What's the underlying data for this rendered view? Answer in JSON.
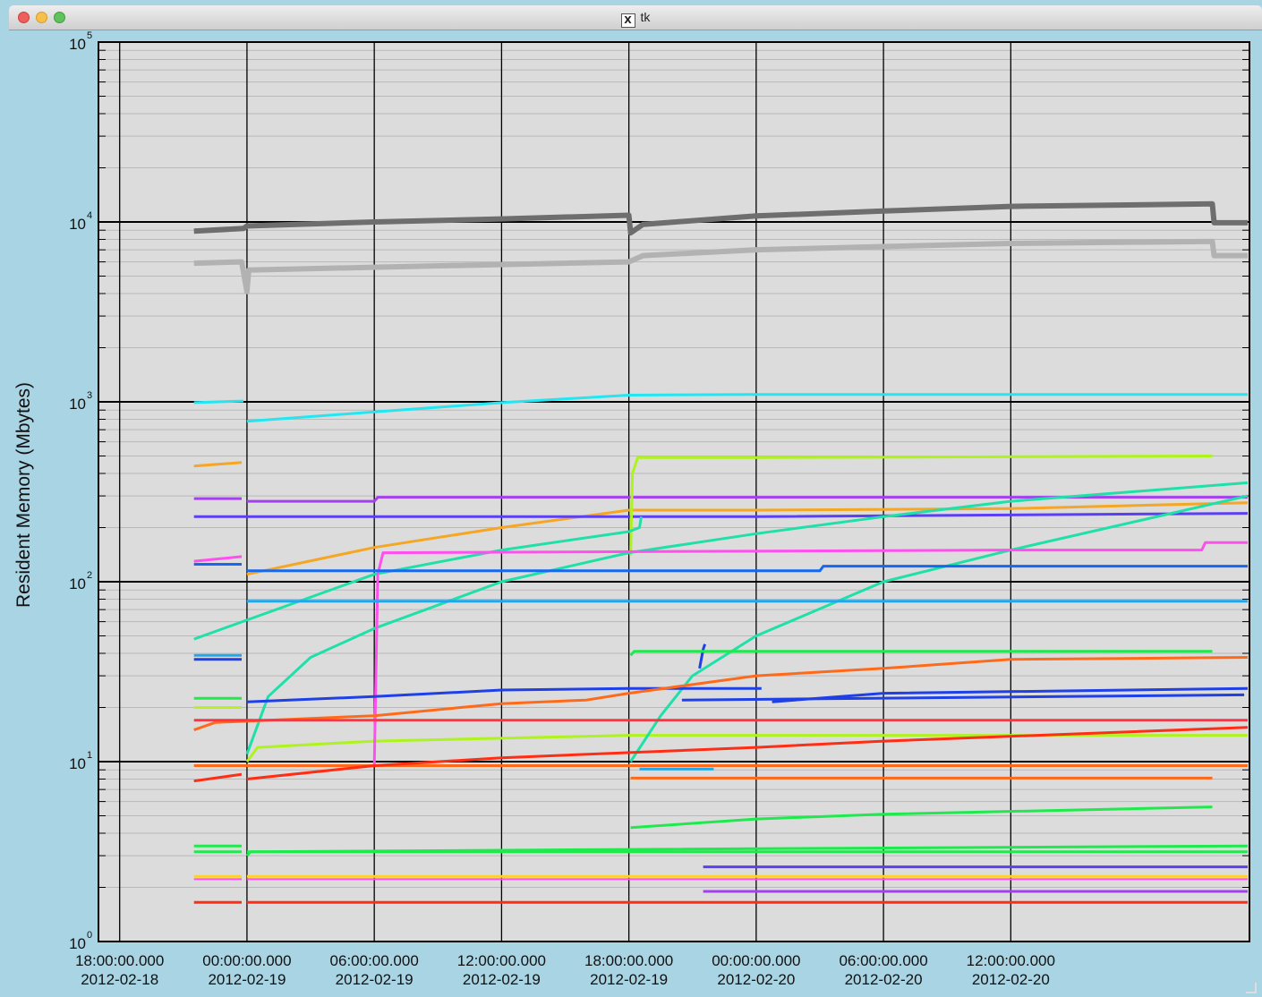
{
  "window": {
    "title": "tk"
  },
  "chart_data": {
    "type": "line",
    "ylabel": "Resident Memory (Mbytes)",
    "xlabel": "",
    "title": "",
    "yscale": "log",
    "ylim": [
      1,
      100000
    ],
    "xlim": [
      "2012-02-18 17:00",
      "2012-02-20 23:15"
    ],
    "grid": true,
    "legend": "none",
    "colors": {
      "plot_bg": "#dcdcdc",
      "frame_bg": "#a9d4e4"
    },
    "y_ticks": [
      {
        "value": 1,
        "base": "10",
        "exp": "0"
      },
      {
        "value": 10,
        "base": "10",
        "exp": "1"
      },
      {
        "value": 100,
        "base": "10",
        "exp": "2"
      },
      {
        "value": 1000,
        "base": "10",
        "exp": "3"
      },
      {
        "value": 10000,
        "base": "10",
        "exp": "4"
      },
      {
        "value": 100000,
        "base": "10",
        "exp": "5"
      }
    ],
    "x_ticks": [
      {
        "t": "2012-02-18 18:00",
        "line1": "18:00:00.000",
        "line2": "2012-02-18"
      },
      {
        "t": "2012-02-19 00:00",
        "line1": "00:00:00.000",
        "line2": "2012-02-19"
      },
      {
        "t": "2012-02-19 06:00",
        "line1": "06:00:00.000",
        "line2": "2012-02-19"
      },
      {
        "t": "2012-02-19 12:00",
        "line1": "12:00:00.000",
        "line2": "2012-02-19"
      },
      {
        "t": "2012-02-19 18:00",
        "line1": "18:00:00.000",
        "line2": "2012-02-19"
      },
      {
        "t": "2012-02-20 00:00",
        "line1": "00:00:00.000",
        "line2": "2012-02-20"
      },
      {
        "t": "2012-02-20 06:00",
        "line1": "06:00:00.000",
        "line2": "2012-02-20"
      },
      {
        "t": "2012-02-20 12:00",
        "line1": "12:00:00.000",
        "line2": "2012-02-20"
      }
    ],
    "series": [
      {
        "color": "#6e6e6e",
        "width": 6,
        "points": [
          [
            "2012-02-18 21:30",
            8900
          ],
          [
            "2012-02-18 23:50",
            9200
          ],
          [
            "2012-02-19 00:00",
            9500
          ],
          [
            "2012-02-19 06:00",
            10000
          ],
          [
            "2012-02-19 12:00",
            10400
          ],
          [
            "2012-02-19 18:00",
            10900
          ],
          [
            "2012-02-19 18:05",
            8700
          ],
          [
            "2012-02-19 18:40",
            9700
          ],
          [
            "2012-02-20 00:00",
            10800
          ],
          [
            "2012-02-20 06:00",
            11500
          ],
          [
            "2012-02-20 12:00",
            12200
          ],
          [
            "2012-02-20 21:30",
            12600
          ],
          [
            "2012-02-20 21:35",
            9900
          ],
          [
            "2012-02-20 23:10",
            9900
          ]
        ]
      },
      {
        "color": "#b2b2b2",
        "width": 6,
        "points": [
          [
            "2012-02-18 21:30",
            5900
          ],
          [
            "2012-02-18 23:45",
            6000
          ],
          [
            "2012-02-19 00:00",
            4100
          ],
          [
            "2012-02-19 00:05",
            5400
          ],
          [
            "2012-02-19 06:00",
            5600
          ],
          [
            "2012-02-19 12:00",
            5800
          ],
          [
            "2012-02-19 18:00",
            6000
          ],
          [
            "2012-02-19 18:40",
            6500
          ],
          [
            "2012-02-20 00:00",
            7000
          ],
          [
            "2012-02-20 06:00",
            7300
          ],
          [
            "2012-02-20 12:00",
            7600
          ],
          [
            "2012-02-20 21:30",
            7800
          ],
          [
            "2012-02-20 21:35",
            6500
          ],
          [
            "2012-02-20 23:10",
            6500
          ]
        ]
      },
      {
        "color": "#22e6f2",
        "width": 3,
        "points": [
          [
            "2012-02-18 21:30",
            990
          ],
          [
            "2012-02-18 23:50",
            1010
          ]
        ]
      },
      {
        "color": "#22e6f2",
        "width": 3,
        "points": [
          [
            "2012-02-19 00:00",
            780
          ],
          [
            "2012-02-19 06:00",
            880
          ],
          [
            "2012-02-19 12:00",
            990
          ],
          [
            "2012-02-19 18:00",
            1090
          ],
          [
            "2012-02-20 00:00",
            1100
          ],
          [
            "2012-02-20 23:10",
            1100
          ]
        ]
      },
      {
        "color": "#f5a623",
        "width": 3,
        "points": [
          [
            "2012-02-18 21:30",
            440
          ],
          [
            "2012-02-18 23:45",
            460
          ]
        ]
      },
      {
        "color": "#f5a623",
        "width": 3,
        "points": [
          [
            "2012-02-19 00:00",
            110
          ],
          [
            "2012-02-19 06:00",
            155
          ],
          [
            "2012-02-19 12:00",
            200
          ],
          [
            "2012-02-19 18:00",
            250
          ],
          [
            "2012-02-20 00:00",
            250
          ],
          [
            "2012-02-20 12:00",
            255
          ],
          [
            "2012-02-20 23:10",
            275
          ]
        ]
      },
      {
        "color": "#a63ff2",
        "width": 3,
        "points": [
          [
            "2012-02-18 21:30",
            290
          ],
          [
            "2012-02-18 23:45",
            290
          ]
        ]
      },
      {
        "color": "#a63ff2",
        "width": 3,
        "points": [
          [
            "2012-02-19 00:00",
            280
          ],
          [
            "2012-02-19 06:00",
            280
          ],
          [
            "2012-02-19 06:10",
            295
          ],
          [
            "2012-02-20 23:10",
            295
          ]
        ]
      },
      {
        "color": "#5a3ff5",
        "width": 3,
        "points": [
          [
            "2012-02-18 21:30",
            230
          ],
          [
            "2012-02-20 00:00",
            230
          ],
          [
            "2012-02-20 23:10",
            240
          ]
        ]
      },
      {
        "color": "#aef21e",
        "width": 3,
        "points": [
          [
            "2012-02-19 00:00",
            10
          ],
          [
            "2012-02-19 00:30",
            12
          ],
          [
            "2012-02-19 06:00",
            13
          ],
          [
            "2012-02-19 18:00",
            14
          ],
          [
            "2012-02-20 00:00",
            14
          ],
          [
            "2012-02-20 23:10",
            14
          ]
        ]
      },
      {
        "color": "#aef21e",
        "width": 3,
        "points": [
          [
            "2012-02-19 18:05",
            140
          ],
          [
            "2012-02-19 18:10",
            400
          ],
          [
            "2012-02-19 18:25",
            490
          ],
          [
            "2012-02-20 00:00",
            490
          ],
          [
            "2012-02-20 21:30",
            500
          ]
        ]
      },
      {
        "color": "#1fe0a8",
        "width": 3,
        "points": [
          [
            "2012-02-18 21:30",
            48
          ],
          [
            "2012-02-19 06:00",
            110
          ],
          [
            "2012-02-19 12:00",
            150
          ],
          [
            "2012-02-19 18:00",
            190
          ],
          [
            "2012-02-19 18:30",
            200
          ],
          [
            "2012-02-19 18:35",
            230
          ]
        ]
      },
      {
        "color": "#1fe0a8",
        "width": 3,
        "points": [
          [
            "2012-02-19 00:00",
            11
          ],
          [
            "2012-02-19 01:00",
            23
          ],
          [
            "2012-02-19 03:00",
            38
          ],
          [
            "2012-02-19 06:00",
            55
          ],
          [
            "2012-02-19 12:00",
            100
          ],
          [
            "2012-02-19 18:00",
            145
          ],
          [
            "2012-02-20 00:00",
            185
          ],
          [
            "2012-02-20 06:00",
            230
          ],
          [
            "2012-02-20 12:00",
            280
          ],
          [
            "2012-02-20 23:10",
            355
          ]
        ]
      },
      {
        "color": "#1fe0a8",
        "width": 3,
        "points": [
          [
            "2012-02-19 18:05",
            10
          ],
          [
            "2012-02-19 19:30",
            18
          ],
          [
            "2012-02-19 21:00",
            30
          ],
          [
            "2012-02-20 00:00",
            50
          ],
          [
            "2012-02-20 06:00",
            100
          ],
          [
            "2012-02-20 12:00",
            150
          ],
          [
            "2012-02-20 23:10",
            300
          ]
        ]
      },
      {
        "color": "#ff4fee",
        "width": 3,
        "points": [
          [
            "2012-02-18 21:30",
            130
          ],
          [
            "2012-02-18 23:45",
            138
          ]
        ]
      },
      {
        "color": "#ff4fee",
        "width": 3,
        "points": [
          [
            "2012-02-19 00:00",
            9.5
          ],
          [
            "2012-02-19 06:00",
            9.5
          ],
          [
            "2012-02-19 06:10",
            110
          ],
          [
            "2012-02-19 06:25",
            145
          ],
          [
            "2012-02-20 12:00",
            150
          ],
          [
            "2012-02-20 21:00",
            150
          ],
          [
            "2012-02-20 21:10",
            165
          ],
          [
            "2012-02-20 23:10",
            165
          ]
        ]
      },
      {
        "color": "#1568ef",
        "width": 3,
        "points": [
          [
            "2012-02-18 21:30",
            125
          ],
          [
            "2012-02-18 23:45",
            125
          ]
        ]
      },
      {
        "color": "#1568ef",
        "width": 3,
        "points": [
          [
            "2012-02-19 00:00",
            115
          ],
          [
            "2012-02-20 03:00",
            115
          ],
          [
            "2012-02-20 03:10",
            122
          ],
          [
            "2012-02-20 23:10",
            122
          ]
        ]
      },
      {
        "color": "#1ea8f0",
        "width": 3,
        "points": [
          [
            "2012-02-19 00:00",
            78
          ],
          [
            "2012-02-20 23:10",
            78
          ]
        ]
      },
      {
        "color": "#1ea8f0",
        "width": 3,
        "points": [
          [
            "2012-02-18 21:30",
            39
          ],
          [
            "2012-02-18 23:45",
            39
          ]
        ]
      },
      {
        "color": "#1e40e6",
        "width": 3,
        "points": [
          [
            "2012-02-18 21:30",
            37
          ],
          [
            "2012-02-18 23:45",
            37
          ]
        ]
      },
      {
        "color": "#1e40e6",
        "width": 3,
        "points": [
          [
            "2012-02-19 00:00",
            21.5
          ],
          [
            "2012-02-19 06:00",
            23
          ],
          [
            "2012-02-19 12:00",
            25
          ],
          [
            "2012-02-19 18:00",
            25.5
          ],
          [
            "2012-02-20 00:15",
            25.5
          ]
        ]
      },
      {
        "color": "#1e40e6",
        "width": 3,
        "points": [
          [
            "2012-02-20 00:45",
            21.5
          ],
          [
            "2012-02-20 06:00",
            24
          ],
          [
            "2012-02-20 23:10",
            25.5
          ]
        ]
      },
      {
        "color": "#1e40e6",
        "width": 3,
        "points": [
          [
            "2012-02-19 20:30",
            22
          ],
          [
            "2012-02-20 23:00",
            23.5
          ]
        ]
      },
      {
        "color": "#1e40e6",
        "width": 3,
        "points": [
          [
            "2012-02-19 21:20",
            33
          ],
          [
            "2012-02-19 21:30",
            42
          ],
          [
            "2012-02-19 21:35",
            45
          ]
        ]
      },
      {
        "color": "#ff6a1a",
        "width": 3,
        "points": [
          [
            "2012-02-18 21:30",
            15
          ],
          [
            "2012-02-18 22:30",
            16.5
          ],
          [
            "2012-02-19 06:00",
            18
          ],
          [
            "2012-02-19 12:00",
            21
          ],
          [
            "2012-02-19 16:00",
            22
          ],
          [
            "2012-02-19 18:00",
            24
          ],
          [
            "2012-02-20 00:00",
            30
          ],
          [
            "2012-02-20 06:00",
            33
          ],
          [
            "2012-02-20 12:00",
            37
          ],
          [
            "2012-02-20 23:10",
            38
          ]
        ]
      },
      {
        "color": "#ff6a1a",
        "width": 3,
        "points": [
          [
            "2012-02-18 21:30",
            9.5
          ],
          [
            "2012-02-20 23:10",
            9.5
          ]
        ]
      },
      {
        "color": "#ff6a1a",
        "width": 3,
        "points": [
          [
            "2012-02-19 18:05",
            8.1
          ],
          [
            "2012-02-20 21:30",
            8.1
          ]
        ]
      },
      {
        "color": "#ff3344",
        "width": 3,
        "points": [
          [
            "2012-02-18 21:30",
            17
          ],
          [
            "2012-02-20 23:10",
            17
          ]
        ]
      },
      {
        "color": "#ff2d14",
        "width": 3,
        "points": [
          [
            "2012-02-18 21:30",
            7.8
          ],
          [
            "2012-02-18 23:45",
            8.5
          ]
        ]
      },
      {
        "color": "#ff2d14",
        "width": 3,
        "points": [
          [
            "2012-02-19 00:00",
            8.0
          ],
          [
            "2012-02-19 06:00",
            9.5
          ],
          [
            "2012-02-19 12:00",
            10.5
          ],
          [
            "2012-02-20 00:00",
            12
          ],
          [
            "2012-02-20 06:00",
            13
          ],
          [
            "2012-02-20 23:10",
            15.5
          ]
        ]
      },
      {
        "color": "#ff2d14",
        "width": 3,
        "points": [
          [
            "2012-02-18 21:30",
            1.65
          ],
          [
            "2012-02-18 23:45",
            1.65
          ]
        ]
      },
      {
        "color": "#ff2d14",
        "width": 3,
        "points": [
          [
            "2012-02-19 00:00",
            1.65
          ],
          [
            "2012-02-20 23:10",
            1.65
          ]
        ]
      },
      {
        "color": "#1fea4d",
        "width": 3,
        "points": [
          [
            "2012-02-18 21:30",
            22.5
          ],
          [
            "2012-02-18 23:45",
            22.5
          ]
        ]
      },
      {
        "color": "#1fea4d",
        "width": 3,
        "points": [
          [
            "2012-02-19 18:05",
            39
          ],
          [
            "2012-02-19 18:15",
            41
          ],
          [
            "2012-02-20 21:30",
            41
          ]
        ]
      },
      {
        "color": "#1fea4d",
        "width": 3,
        "points": [
          [
            "2012-02-19 18:05",
            4.3
          ],
          [
            "2012-02-20 00:00",
            4.8
          ],
          [
            "2012-02-20 06:00",
            5.1
          ],
          [
            "2012-02-20 21:30",
            5.6
          ]
        ]
      },
      {
        "color": "#1fea4d",
        "width": 3,
        "points": [
          [
            "2012-02-18 21:30",
            3.4
          ],
          [
            "2012-02-18 23:45",
            3.4
          ]
        ]
      },
      {
        "color": "#1fea4d",
        "width": 3,
        "points": [
          [
            "2012-02-19 00:00",
            3.0
          ],
          [
            "2012-02-19 00:10",
            3.15
          ],
          [
            "2012-02-19 18:00",
            3.25
          ],
          [
            "2012-02-20 23:10",
            3.4
          ]
        ]
      },
      {
        "color": "#1fea4d",
        "width": 3,
        "points": [
          [
            "2012-02-19 00:00",
            3.15
          ],
          [
            "2012-02-20 23:10",
            3.15
          ]
        ]
      },
      {
        "color": "#1fea4d",
        "width": 3,
        "points": [
          [
            "2012-02-18 21:30",
            3.15
          ],
          [
            "2012-02-18 23:45",
            3.15
          ]
        ]
      },
      {
        "color": "#b8f021",
        "width": 3,
        "points": [
          [
            "2012-02-18 21:30",
            20
          ],
          [
            "2012-02-18 23:45",
            20
          ]
        ]
      },
      {
        "color": "#ffd22a",
        "width": 3,
        "points": [
          [
            "2012-02-18 21:30",
            2.3
          ],
          [
            "2012-02-18 23:45",
            2.3
          ]
        ]
      },
      {
        "color": "#ffd22a",
        "width": 3,
        "points": [
          [
            "2012-02-19 00:00",
            2.3
          ],
          [
            "2012-02-20 23:10",
            2.3
          ]
        ]
      },
      {
        "color": "#ff4fee",
        "width": 2,
        "points": [
          [
            "2012-02-18 21:30",
            2.22
          ],
          [
            "2012-02-18 23:45",
            2.22
          ]
        ]
      },
      {
        "color": "#ff4fee",
        "width": 2,
        "points": [
          [
            "2012-02-19 00:00",
            2.22
          ],
          [
            "2012-02-20 23:10",
            2.22
          ]
        ]
      },
      {
        "color": "#5a3ff5",
        "width": 3,
        "points": [
          [
            "2012-02-19 21:30",
            2.6
          ],
          [
            "2012-02-20 23:10",
            2.6
          ]
        ]
      },
      {
        "color": "#a63ff2",
        "width": 3,
        "points": [
          [
            "2012-02-19 21:30",
            1.9
          ],
          [
            "2012-02-20 23:10",
            1.9
          ]
        ]
      },
      {
        "color": "#1ea8f0",
        "width": 3,
        "points": [
          [
            "2012-02-19 18:30",
            9.1
          ],
          [
            "2012-02-19 22:00",
            9.1
          ]
        ]
      }
    ]
  }
}
